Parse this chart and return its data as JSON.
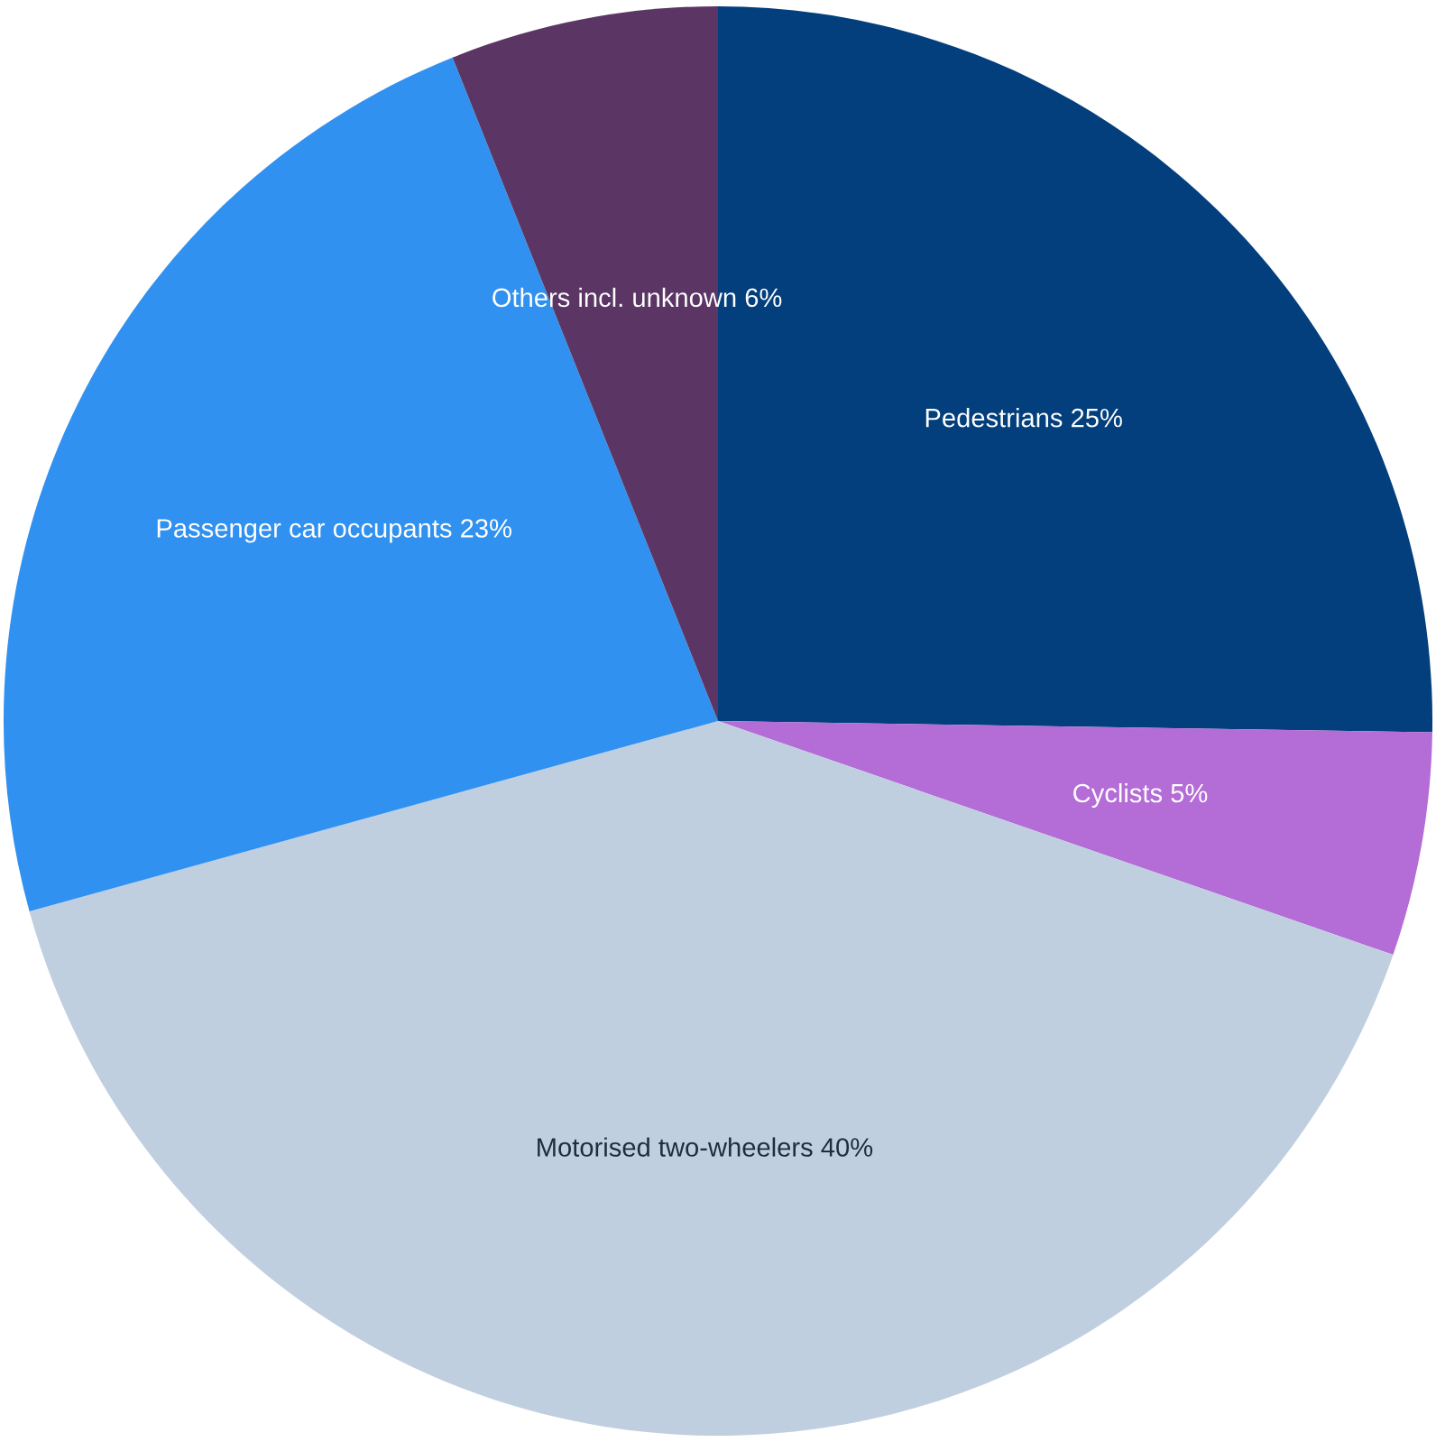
{
  "chart_data": {
    "type": "pie",
    "categories": [
      "Pedestrians",
      "Cyclists",
      "Motorised two-wheelers",
      "Passenger car occupants",
      "Others incl. unknown"
    ],
    "values": [
      25,
      5,
      40,
      23,
      6
    ],
    "value_labels": [
      "25%",
      "5%",
      "40%",
      "23%",
      "6%"
    ],
    "colors": [
      "#023f7c",
      "#b46cd6",
      "#c0cfe0",
      "#3191f0",
      "#5b3564"
    ],
    "legend": false
  }
}
